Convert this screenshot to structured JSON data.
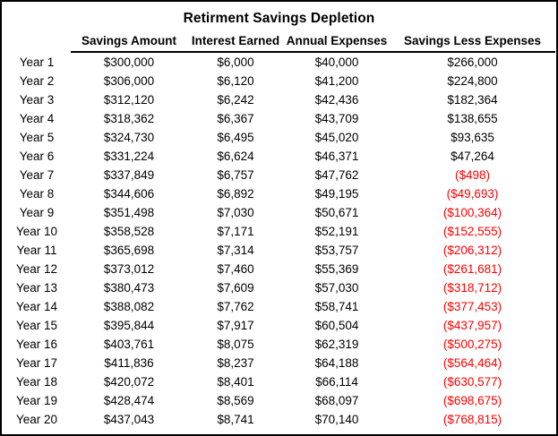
{
  "title": "Retirment Savings Depletion",
  "columns": {
    "savings": "Savings Amount",
    "interest": "Interest Earned",
    "expenses": "Annual Expenses",
    "net": "Savings Less Expenses"
  },
  "colors": {
    "text": "#000000",
    "negative_value": "#ff0000",
    "border": "#000000",
    "background": "#ffffff"
  },
  "rows": [
    {
      "year": "Year 1",
      "savings": "$300,000",
      "interest": "$6,000",
      "expenses": "$40,000",
      "net": "$266,000",
      "net_negative": false
    },
    {
      "year": "Year 2",
      "savings": "$306,000",
      "interest": "$6,120",
      "expenses": "$41,200",
      "net": "$224,800",
      "net_negative": false
    },
    {
      "year": "Year 3",
      "savings": "$312,120",
      "interest": "$6,242",
      "expenses": "$42,436",
      "net": "$182,364",
      "net_negative": false
    },
    {
      "year": "Year 4",
      "savings": "$318,362",
      "interest": "$6,367",
      "expenses": "$43,709",
      "net": "$138,655",
      "net_negative": false
    },
    {
      "year": "Year 5",
      "savings": "$324,730",
      "interest": "$6,495",
      "expenses": "$45,020",
      "net": "$93,635",
      "net_negative": false
    },
    {
      "year": "Year 6",
      "savings": "$331,224",
      "interest": "$6,624",
      "expenses": "$46,371",
      "net": "$47,264",
      "net_negative": false
    },
    {
      "year": "Year 7",
      "savings": "$337,849",
      "interest": "$6,757",
      "expenses": "$47,762",
      "net": "($498)",
      "net_negative": true
    },
    {
      "year": "Year 8",
      "savings": "$344,606",
      "interest": "$6,892",
      "expenses": "$49,195",
      "net": "($49,693)",
      "net_negative": true
    },
    {
      "year": "Year 9",
      "savings": "$351,498",
      "interest": "$7,030",
      "expenses": "$50,671",
      "net": "($100,364)",
      "net_negative": true
    },
    {
      "year": "Year 10",
      "savings": "$358,528",
      "interest": "$7,171",
      "expenses": "$52,191",
      "net": "($152,555)",
      "net_negative": true
    },
    {
      "year": "Year 11",
      "savings": "$365,698",
      "interest": "$7,314",
      "expenses": "$53,757",
      "net": "($206,312)",
      "net_negative": true
    },
    {
      "year": "Year 12",
      "savings": "$373,012",
      "interest": "$7,460",
      "expenses": "$55,369",
      "net": "($261,681)",
      "net_negative": true
    },
    {
      "year": "Year 13",
      "savings": "$380,473",
      "interest": "$7,609",
      "expenses": "$57,030",
      "net": "($318,712)",
      "net_negative": true
    },
    {
      "year": "Year 14",
      "savings": "$388,082",
      "interest": "$7,762",
      "expenses": "$58,741",
      "net": "($377,453)",
      "net_negative": true
    },
    {
      "year": "Year 15",
      "savings": "$395,844",
      "interest": "$7,917",
      "expenses": "$60,504",
      "net": "($437,957)",
      "net_negative": true
    },
    {
      "year": "Year 16",
      "savings": "$403,761",
      "interest": "$8,075",
      "expenses": "$62,319",
      "net": "($500,275)",
      "net_negative": true
    },
    {
      "year": "Year 17",
      "savings": "$411,836",
      "interest": "$8,237",
      "expenses": "$64,188",
      "net": "($564,464)",
      "net_negative": true
    },
    {
      "year": "Year 18",
      "savings": "$420,072",
      "interest": "$8,401",
      "expenses": "$66,114",
      "net": "($630,577)",
      "net_negative": true
    },
    {
      "year": "Year 19",
      "savings": "$428,474",
      "interest": "$8,569",
      "expenses": "$68,097",
      "net": "($698,675)",
      "net_negative": true
    },
    {
      "year": "Year 20",
      "savings": "$437,043",
      "interest": "$8,741",
      "expenses": "$70,140",
      "net": "($768,815)",
      "net_negative": true
    }
  ]
}
